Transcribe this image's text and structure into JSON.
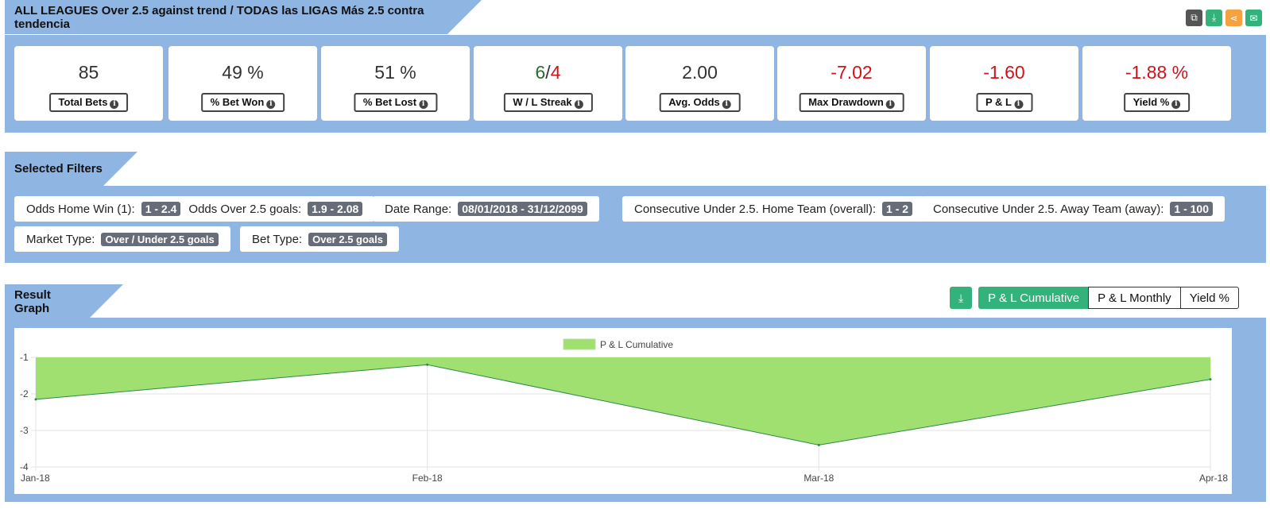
{
  "header": {
    "title": "ALL LEAGUES Over 2.5 against trend / TODAS las LIGAS Más 2.5 contra tendencia",
    "icons": [
      {
        "name": "copy-icon",
        "color": "#555555"
      },
      {
        "name": "download-icon",
        "color": "#33b27b"
      },
      {
        "name": "share-icon",
        "color": "#f5a142"
      },
      {
        "name": "email-icon",
        "color": "#33b27b"
      }
    ]
  },
  "stats": [
    {
      "value": "85",
      "label": "Total Bets"
    },
    {
      "value": "49 %",
      "label": "% Bet Won"
    },
    {
      "value": "51 %",
      "label": "% Bet Lost"
    },
    {
      "value_win": "6",
      "value_sep": "/",
      "value_loss": "4",
      "label": "W / L Streak"
    },
    {
      "value": "2.00",
      "label": "Avg. Odds"
    },
    {
      "value": "-7.02",
      "label": "Max Drawdown"
    },
    {
      "value": "-1.60",
      "label": "P & L"
    },
    {
      "value": "-1.88 %",
      "label": "Yield %"
    }
  ],
  "filters": {
    "title": "Selected Filters",
    "chips": [
      {
        "label": "Odds Home Win (1):",
        "value": "1 - 2.4",
        "label2": "Odds Over 2.5 goals:",
        "value2": "1.9 - 2.08"
      },
      {
        "label": "Date Range:",
        "value": "08/01/2018 - 31/12/2099"
      },
      {
        "label": "Consecutive Under 2.5. Home Team (overall):",
        "value": "1 - 2"
      },
      {
        "label": "Consecutive Under 2.5. Away Team (away):",
        "value": "1 - 100"
      },
      {
        "label": "Market Type:",
        "value": "Over / Under 2.5 goals"
      },
      {
        "label": "Bet Type:",
        "value": "Over 2.5 goals"
      }
    ]
  },
  "graph": {
    "title": "Result Graph",
    "buttons": [
      "P & L Cumulative",
      "P & L Monthly",
      "Yield %"
    ],
    "active_button": "P & L Cumulative"
  },
  "chart_data": {
    "type": "area",
    "categories": [
      "Jan-18",
      "Feb-18",
      "Mar-18",
      "Apr-18"
    ],
    "series": [
      {
        "name": "P & L Cumulative",
        "values": [
          -2.15,
          -1.2,
          -3.4,
          -1.6
        ],
        "fill": "#a0e070",
        "line": "#2a8a4a"
      }
    ],
    "ylim": [
      -4,
      -1
    ],
    "yticks": [
      "-1",
      "-2",
      "-3",
      "-4"
    ],
    "legend": "top-center",
    "grid": true
  }
}
